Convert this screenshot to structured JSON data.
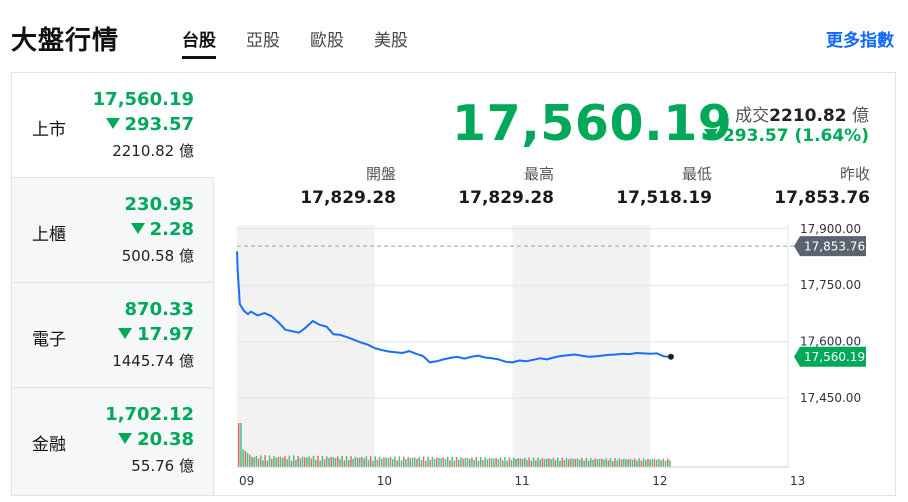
{
  "header": {
    "title": "大盤行情",
    "tabs": [
      {
        "label": "台股"
      },
      {
        "label": "亞股"
      },
      {
        "label": "歐股"
      },
      {
        "label": "美股"
      }
    ],
    "more_link": "更多指數"
  },
  "sidebar": {
    "items": [
      {
        "name": "上市",
        "price": "17,560.19",
        "change": "293.57",
        "volume": "2210.82 億"
      },
      {
        "name": "上櫃",
        "price": "230.95",
        "change": "2.28",
        "volume": "500.58 億"
      },
      {
        "name": "電子",
        "price": "870.33",
        "change": "17.97",
        "volume": "1445.74 億"
      },
      {
        "name": "金融",
        "price": "1,702.12",
        "change": "20.38",
        "volume": "55.76 億"
      }
    ]
  },
  "summary": {
    "price": "17,560.19",
    "volume_label": "成交",
    "volume_value": "2210.82",
    "volume_unit": "億",
    "change": "293.57 (1.64%)",
    "stats": [
      {
        "label": "開盤",
        "value": "17,829.28"
      },
      {
        "label": "最高",
        "value": "17,829.28"
      },
      {
        "label": "最低",
        "value": "17,518.19"
      },
      {
        "label": "昨收",
        "value": "17,853.76"
      }
    ]
  },
  "colors": {
    "down": "#00a85a",
    "line": "#1a6dff",
    "ref_tag": "#5b6370",
    "link": "#0f69ff"
  },
  "chart_data": {
    "type": "line",
    "x_ticks": [
      "09",
      "10",
      "11",
      "12",
      "13"
    ],
    "y_ticks": [
      "17,900.00",
      "17,750.00",
      "17,600.00",
      "17,450.00"
    ],
    "ylim": [
      17400,
      17910
    ],
    "xlim": [
      0,
      4
    ],
    "reference_line": {
      "value": 17853.76,
      "label": "17,853.76"
    },
    "last_price_tag": {
      "value": 17560.19,
      "label": "17,560.19"
    },
    "series": [
      {
        "x": [
          0,
          0.005,
          0.02,
          0.05,
          0.08,
          0.1,
          0.15,
          0.2,
          0.25,
          0.3,
          0.35,
          0.4,
          0.45,
          0.5,
          0.55,
          0.6,
          0.65,
          0.7,
          0.75,
          0.8,
          0.85,
          0.9,
          0.95,
          1.0,
          1.05,
          1.1,
          1.15,
          1.2,
          1.25,
          1.3,
          1.35,
          1.4,
          1.45,
          1.5,
          1.55,
          1.6,
          1.65,
          1.7,
          1.75,
          1.8,
          1.85,
          1.9,
          1.95,
          2.0,
          2.05,
          2.1,
          2.15,
          2.2,
          2.25,
          2.3,
          2.35,
          2.4,
          2.45,
          2.5,
          2.55,
          2.6,
          2.65,
          2.7,
          2.75,
          2.8,
          2.85,
          2.9,
          2.95,
          3.0,
          3.05,
          3.1,
          3.15
        ],
        "values": [
          17840,
          17790,
          17700,
          17682,
          17673,
          17680,
          17670,
          17676,
          17668,
          17652,
          17632,
          17628,
          17624,
          17638,
          17655,
          17645,
          17640,
          17620,
          17618,
          17612,
          17605,
          17598,
          17592,
          17583,
          17578,
          17574,
          17572,
          17570,
          17575,
          17568,
          17562,
          17545,
          17548,
          17553,
          17557,
          17560,
          17555,
          17560,
          17563,
          17558,
          17556,
          17553,
          17547,
          17545,
          17550,
          17548,
          17552,
          17556,
          17553,
          17558,
          17562,
          17564,
          17566,
          17563,
          17560.19,
          17561,
          17563,
          17565,
          17566,
          17568,
          17567,
          17570,
          17569,
          17568,
          17569,
          17561,
          17560.19
        ]
      }
    ]
  }
}
